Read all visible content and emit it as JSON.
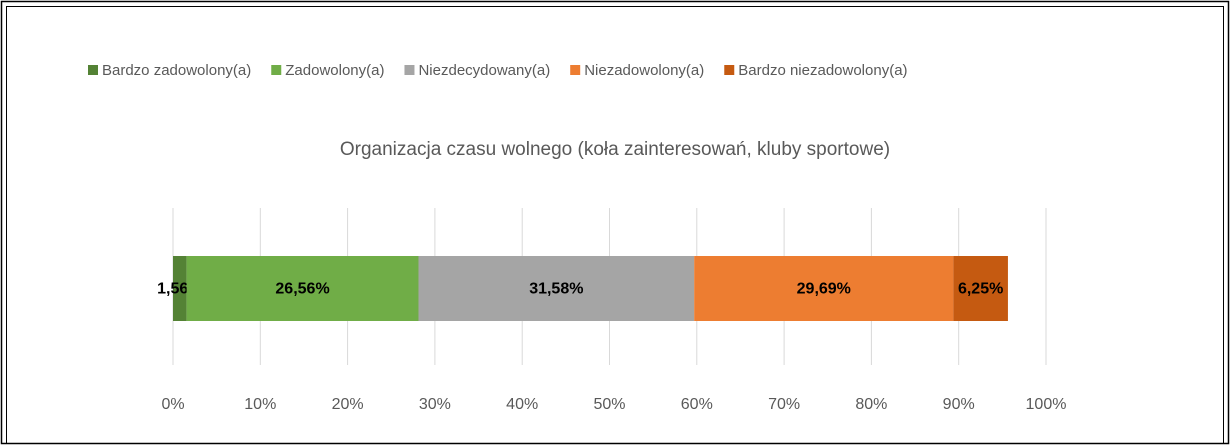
{
  "chart_data": {
    "type": "stacked_bar_horizontal",
    "title": "Organizacja czasu wolnego (koła zainteresowań, kluby sportowe)",
    "categories": [
      null
    ],
    "series": [
      {
        "name": "Bardzo zadowolony(a)",
        "color": "#548235",
        "values": [
          1.56
        ],
        "value_labels": [
          "1,56%"
        ]
      },
      {
        "name": "Zadowolony(a)",
        "color": "#70ad47",
        "values": [
          26.56
        ],
        "value_labels": [
          "26,56%"
        ]
      },
      {
        "name": "Niezdecydowany(a)",
        "color": "#a5a5a5",
        "values": [
          31.58
        ],
        "value_labels": [
          "31,58%"
        ]
      },
      {
        "name": "Niezadowolony(a)",
        "color": "#ed7d31",
        "values": [
          29.69
        ],
        "value_labels": [
          "29,69%"
        ]
      },
      {
        "name": "Bardzo niezadowolony(a)",
        "color": "#c55a11",
        "values": [
          6.25
        ],
        "value_labels": [
          "6,25%"
        ]
      }
    ],
    "xlim": [
      0,
      100
    ],
    "xticks": [
      {
        "value": 0,
        "label": "0%"
      },
      {
        "value": 10,
        "label": "10%"
      },
      {
        "value": 20,
        "label": "20%"
      },
      {
        "value": 30,
        "label": "30%"
      },
      {
        "value": 40,
        "label": "40%"
      },
      {
        "value": 50,
        "label": "50%"
      },
      {
        "value": 60,
        "label": "60%"
      },
      {
        "value": 70,
        "label": "70%"
      },
      {
        "value": 80,
        "label": "80%"
      },
      {
        "value": 90,
        "label": "90%"
      },
      {
        "value": 100,
        "label": "100%"
      }
    ],
    "grid": true,
    "legend": "top"
  }
}
